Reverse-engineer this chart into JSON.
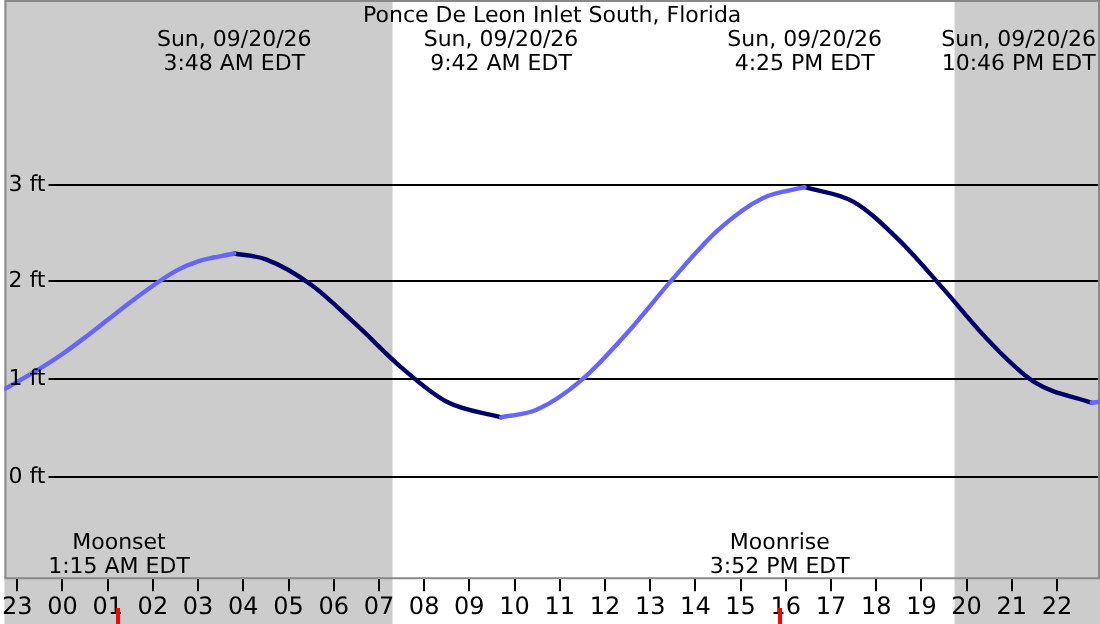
{
  "chart_data": {
    "type": "line",
    "title": "Ponce De Leon Inlet South, Florida",
    "xlim": [
      "--09-19T22:43",
      "--09-20T22:57"
    ],
    "xticks": [
      {
        "value": "--09-19T23:00",
        "label": "23"
      },
      {
        "value": "--09-20T00:00",
        "label": "00"
      },
      {
        "value": "--09-20T01:00",
        "label": "01"
      },
      {
        "value": "--09-20T02:00",
        "label": "02"
      },
      {
        "value": "--09-20T03:00",
        "label": "03"
      },
      {
        "value": "--09-20T04:00",
        "label": "04"
      },
      {
        "value": "--09-20T05:00",
        "label": "05"
      },
      {
        "value": "--09-20T06:00",
        "label": "06"
      },
      {
        "value": "--09-20T07:00",
        "label": "07"
      },
      {
        "value": "--09-20T08:00",
        "label": "08"
      },
      {
        "value": "--09-20T09:00",
        "label": "09"
      },
      {
        "value": "--09-20T10:00",
        "label": "10"
      },
      {
        "value": "--09-20T11:00",
        "label": "11"
      },
      {
        "value": "--09-20T12:00",
        "label": "12"
      },
      {
        "value": "--09-20T13:00",
        "label": "13"
      },
      {
        "value": "--09-20T14:00",
        "label": "14"
      },
      {
        "value": "--09-20T15:00",
        "label": "15"
      },
      {
        "value": "--09-20T16:00",
        "label": "16"
      },
      {
        "value": "--09-20T17:00",
        "label": "17"
      },
      {
        "value": "--09-20T18:00",
        "label": "18"
      },
      {
        "value": "--09-20T19:00",
        "label": "19"
      },
      {
        "value": "--09-20T20:00",
        "label": "20"
      },
      {
        "value": "--09-20T21:00",
        "label": "21"
      },
      {
        "value": "--09-20T22:00",
        "label": "22"
      }
    ],
    "ylim": [
      -1.06,
      4.88
    ],
    "yticks": [
      {
        "value": 0,
        "label": "0 ft"
      },
      {
        "value": 1,
        "label": "1 ft"
      },
      {
        "value": 2,
        "label": "2 ft"
      },
      {
        "value": 3,
        "label": "3 ft"
      }
    ],
    "grid": "y",
    "legend": false,
    "marker": "none",
    "line_style": "solid",
    "series": [
      {
        "color": "#6666ff",
        "x": [
          "--09-19T22:43",
          "--09-19T23:30",
          "--09-20T00:00",
          "--09-20T00:30",
          "--09-20T01:00",
          "--09-20T01:30",
          "--09-20T02:00",
          "--09-20T02:30",
          "--09-20T03:00",
          "--09-20T03:48",
          "--09-20T03:49",
          "--09-20T09:41",
          "--09-20T09:42",
          "--09-20T10:30",
          "--09-20T11:30",
          "--09-20T12:30",
          "--09-20T13:30",
          "--09-20T14:30",
          "--09-20T15:30",
          "--09-20T16:25",
          "--09-20T16:26",
          "--09-20T22:45",
          "--09-20T22:46",
          "--09-20T22:57"
        ],
        "values": [
          0.89,
          1.1,
          1.25,
          1.42,
          1.6,
          1.78,
          1.95,
          2.1,
          2.2,
          2.28,
          null,
          null,
          0.6,
          0.68,
          0.99,
          1.47,
          2.02,
          2.52,
          2.85,
          2.96,
          null,
          null,
          0.75,
          0.76
        ]
      },
      {
        "color": "#000066",
        "x": [
          "--09-20T03:48",
          "--09-20T04:30",
          "--09-20T05:30",
          "--09-20T06:30",
          "--09-20T07:30",
          "--09-20T08:30",
          "--09-20T09:42",
          "--09-20T09:43",
          "--09-20T16:24",
          "--09-20T16:25",
          "--09-20T17:30",
          "--09-20T18:30",
          "--09-20T19:30",
          "--09-20T20:30",
          "--09-20T21:30",
          "--09-20T22:46"
        ],
        "values": [
          2.28,
          2.22,
          1.96,
          1.55,
          1.11,
          0.76,
          0.6,
          null,
          null,
          2.96,
          2.81,
          2.42,
          1.91,
          1.38,
          0.96,
          0.75
        ]
      }
    ],
    "bands": [
      {
        "axis": "x",
        "from": "--09-19T22:43",
        "to": "--09-20T07:18",
        "color": "#cccccc"
      },
      {
        "axis": "x",
        "from": "--09-20T19:44",
        "to": "--09-20T22:57",
        "color": "#cccccc"
      }
    ],
    "ref_lines": [
      {
        "axis": "x",
        "value": "--09-20T01:15",
        "label": "Moonset\n1:15 AM EDT",
        "color": "#ff0000"
      },
      {
        "axis": "x",
        "value": "--09-20T15:52",
        "label": "Moonrise\n3:52 PM EDT",
        "color": "#ff0000"
      }
    ],
    "annotations": [
      "Sun, 09/20/26\n3:48 AM EDT",
      "Sun, 09/20/26\n9:42 AM EDT",
      "Sun, 09/20/26\n4:25 PM EDT",
      "Sun, 09/20/26\n10:46 PM EDT"
    ]
  }
}
